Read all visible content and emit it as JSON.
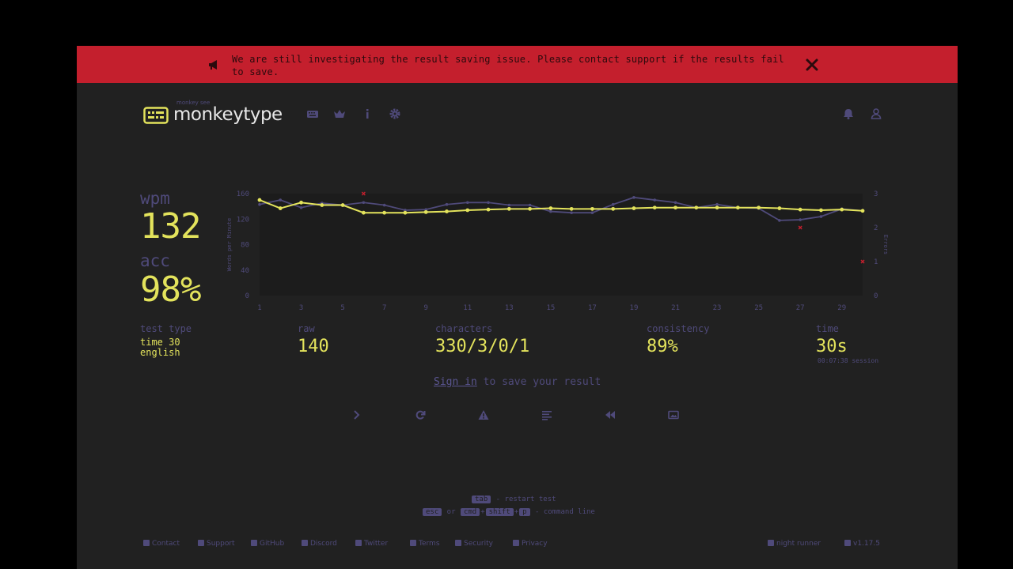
{
  "banner": {
    "text": "We are still investigating the result saving issue. Please contact support if the results fail to save.",
    "color": "#c41f2d"
  },
  "header": {
    "logo_sub": "monkey see",
    "logo_text": "monkeytype",
    "nav_icons": [
      "keyboard-icon",
      "crown-icon",
      "info-icon",
      "gear-icon"
    ],
    "right_icons": [
      "bell-icon",
      "user-icon"
    ]
  },
  "result": {
    "wpm_label": "wpm",
    "wpm": "132",
    "acc_label": "acc",
    "acc": "98%",
    "test_type_label": "test type",
    "test_type_mode": "time 30",
    "test_type_language": "english",
    "raw_label": "raw",
    "raw": "140",
    "characters_label": "characters",
    "characters": "330/3/0/1",
    "consistency_label": "consistency",
    "consistency": "89%",
    "time_label": "time",
    "time": "30s",
    "session": "00:07:38 session"
  },
  "chart_data": {
    "type": "line",
    "ylabel": "Words per Minute",
    "y2label": "Errors",
    "ylim": [
      0,
      160
    ],
    "y2lim": [
      0,
      3
    ],
    "y_ticks": [
      "0",
      "40",
      "80",
      "120",
      "160"
    ],
    "y2_ticks": [
      "0",
      "1",
      "2",
      "3"
    ],
    "x_ticks": [
      "1",
      "3",
      "5",
      "7",
      "9",
      "11",
      "13",
      "15",
      "17",
      "19",
      "21",
      "23",
      "25",
      "27",
      "29"
    ],
    "x": [
      1,
      2,
      3,
      4,
      5,
      6,
      7,
      8,
      9,
      10,
      11,
      12,
      13,
      14,
      15,
      16,
      17,
      18,
      19,
      20,
      21,
      22,
      23,
      24,
      25,
      26,
      27,
      28,
      29,
      30
    ],
    "series": [
      {
        "name": "wpm",
        "color": "#e3e35c",
        "values": [
          150,
          137,
          146,
          142,
          142,
          130,
          130,
          130,
          131,
          132,
          134,
          135,
          136,
          136,
          137,
          136,
          136,
          136,
          137,
          138,
          138,
          138,
          138,
          138,
          138,
          137,
          135,
          134,
          135,
          133
        ]
      },
      {
        "name": "raw",
        "color": "#4f4a7a",
        "values": [
          143,
          150,
          138,
          145,
          142,
          146,
          142,
          134,
          135,
          143,
          146,
          146,
          142,
          142,
          132,
          130,
          130,
          143,
          154,
          150,
          146,
          138,
          143,
          138,
          137,
          118,
          119,
          124,
          136,
          133
        ]
      }
    ],
    "errors": [
      {
        "x": 6,
        "errors": 3
      },
      {
        "x": 27,
        "errors": 2
      },
      {
        "x": 30,
        "errors": 1
      }
    ]
  },
  "signin": {
    "link": "Sign in",
    "rest": " to save your result"
  },
  "actions": [
    "next-test-icon",
    "restart-icon",
    "warning-icon",
    "words-history-icon",
    "replay-icon",
    "screenshot-icon"
  ],
  "hints": {
    "key_tab": "tab",
    "restart": " - restart test",
    "key_esc": "esc",
    "or": " or ",
    "key_cmd": "cmd",
    "plus": "+",
    "key_shift": "shift",
    "key_p": "p",
    "command": " - command line"
  },
  "footer": {
    "links": [
      "Contact",
      "Support",
      "GitHub",
      "Discord",
      "Twitter",
      "Terms",
      "Security",
      "Privacy"
    ],
    "theme": "night runner",
    "version": "v1.17.5"
  },
  "colors": {
    "background": "#212121",
    "main": "#e3e35c",
    "sub": "#4f4a7a",
    "error": "#c41f2d"
  }
}
